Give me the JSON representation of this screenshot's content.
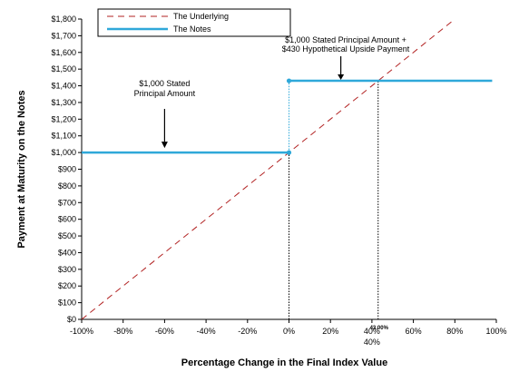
{
  "chart_data": {
    "type": "line",
    "xlabel": "Percentage Change in the Final Index Value",
    "ylabel": "Payment at Maturity on the Notes",
    "xlim": [
      -100,
      100
    ],
    "ylim": [
      0,
      1800
    ],
    "x_ticks": [
      "-100%",
      "-80%",
      "-60%",
      "-40%",
      "-20%",
      "0%",
      "20%",
      "40%",
      "60%",
      "80%",
      "100%"
    ],
    "y_ticks": [
      "$0",
      "$100",
      "$200",
      "$300",
      "$400",
      "$500",
      "$600",
      "$700",
      "$800",
      "$900",
      "$1,000",
      "$1,100",
      "$1,200",
      "$1,300",
      "$1,400",
      "$1,500",
      "$1,600",
      "$1,700",
      "$1,800"
    ],
    "legend_position": "top-left",
    "series": [
      {
        "name": "The Underlying",
        "style": "dashed",
        "color": "#b22222",
        "points": [
          [
            -100,
            0
          ],
          [
            100,
            2000
          ]
        ]
      },
      {
        "name": "The Notes",
        "style": "solid",
        "color": "#2fa8d9",
        "points": [
          [
            -100,
            1000
          ],
          [
            0,
            1000
          ],
          [
            0,
            1430
          ],
          [
            98,
            1430
          ]
        ]
      }
    ],
    "reference_lines": [
      {
        "x": 0,
        "y_to": 1000,
        "color": "#000000",
        "style": "dotted"
      },
      {
        "x": 0,
        "y_from": 1000,
        "y_to": 1430,
        "color": "#2fa8d9",
        "style": "dotted"
      },
      {
        "x": 43,
        "y_to": 1430,
        "color": "#000000",
        "style": "dotted"
      }
    ],
    "markers": [
      {
        "x": 0,
        "y": 1430,
        "color": "#2fa8d9"
      },
      {
        "x": 0,
        "y": 1000,
        "color": "#2fa8d9"
      }
    ],
    "annotations": [
      {
        "lines": [
          "$1,000 Stated",
          "Principal Amount"
        ],
        "arrow_to": {
          "x": -60,
          "y": 1000
        }
      },
      {
        "lines": [
          "$1,000 Stated Principal Amount +",
          "$430 Hypothetical Upside Payment"
        ],
        "arrow_to": {
          "x": 25,
          "y": 1430
        }
      }
    ],
    "x_extra_labels": [
      {
        "text": "43.00%",
        "x": 43
      },
      {
        "text": "40%",
        "x": 40
      }
    ]
  }
}
